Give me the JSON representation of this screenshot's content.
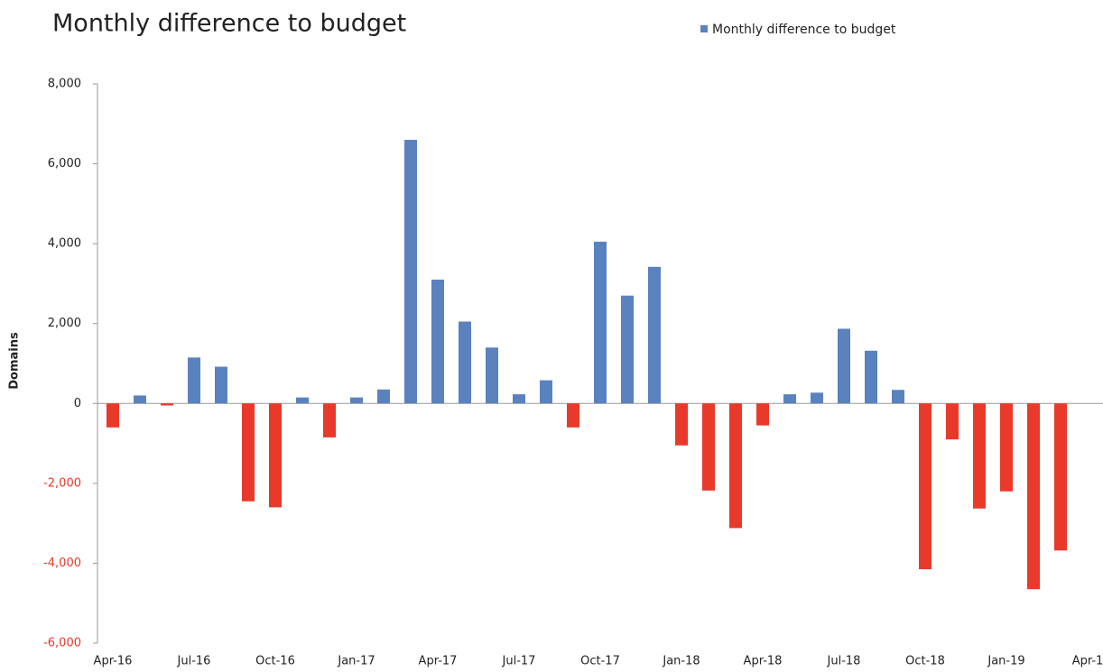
{
  "chart_data": {
    "type": "bar",
    "title": "Monthly difference to budget",
    "y_label": "Domains",
    "categories": [
      "Apr-16",
      null,
      null,
      "Jul-16",
      null,
      null,
      "Oct-16",
      null,
      null,
      "Jan-17",
      null,
      null,
      "Apr-17",
      null,
      null,
      "Jul-17",
      null,
      null,
      "Oct-17",
      null,
      null,
      "Jan-18",
      null,
      null,
      "Apr-18",
      null,
      null,
      "Jul-18",
      null,
      null,
      "Oct-18",
      null,
      null,
      "Jan-19",
      null,
      null,
      "Apr-1"
    ],
    "series": [
      {
        "name": "Monthly difference to budget",
        "color": "#5a82be",
        "values": [
          -600,
          200,
          -50,
          1150,
          920,
          -2450,
          -2600,
          150,
          -850,
          150,
          350,
          6600,
          3100,
          2050,
          1400,
          230,
          580,
          -600,
          4050,
          2700,
          3420,
          -1050,
          -2180,
          -3120,
          -550,
          230,
          270,
          1870,
          1320,
          340,
          -4150,
          -900,
          -2630,
          -2200,
          -4650,
          -3680,
          null
        ]
      }
    ],
    "negative_color": "#e8392a",
    "ylim": [
      -6000,
      8000
    ],
    "yticks": [
      {
        "value": -6000,
        "label": "-6,000"
      },
      {
        "value": -4000,
        "label": "-4,000"
      },
      {
        "value": -2000,
        "label": "-2,000"
      },
      0,
      {
        "value": 2000,
        "label": "2,000"
      },
      {
        "value": 4000,
        "label": "4,000"
      },
      {
        "value": 6000,
        "label": "6,000"
      },
      {
        "value": 8000,
        "label": "8,000"
      }
    ],
    "legend": "top-right"
  }
}
